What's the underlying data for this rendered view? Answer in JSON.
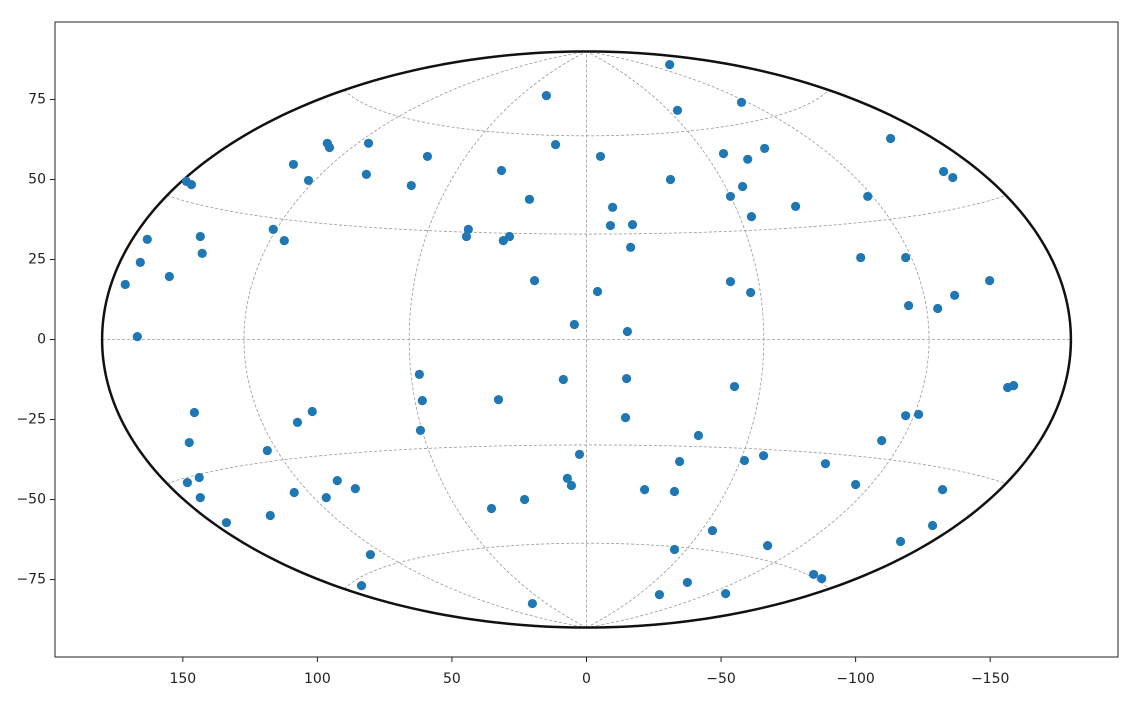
{
  "chart_data": {
    "type": "scatter",
    "projection": "hammer",
    "grid": true,
    "grid_spacing_deg": [
      60,
      30
    ],
    "xlim": [
      197.5,
      -197.5
    ],
    "ylim": [
      -99.2,
      99.2
    ],
    "xticks": [
      150,
      100,
      50,
      0,
      {
        "value": -50,
        "label": "−50"
      },
      {
        "value": -100,
        "label": "−100"
      },
      {
        "value": -150,
        "label": "−150"
      }
    ],
    "yticks": [
      {
        "value": -75,
        "label": "−75"
      },
      {
        "value": -50,
        "label": "−50"
      },
      {
        "value": -25,
        "label": "−25"
      },
      0,
      25,
      50,
      75
    ],
    "series": [
      {
        "color": "#1f77b4",
        "x": [
          -30.9,
          14.9,
          -33.8,
          -57.6,
          81.0,
          96.3,
          95.5,
          11.5,
          -5.2,
          59.1,
          108.9,
          81.8,
          103.3,
          148.7,
          146.8,
          65.1,
          31.6,
          21.2,
          -31.2,
          -50.9,
          -59.9,
          -66.2,
          -58.0,
          -53.5,
          -61.3,
          -77.7,
          -113,
          -104.5,
          -132.7,
          -136.1,
          -9.7,
          -8.9,
          -17.1,
          -16.4,
          43.9,
          44.6,
          28.6,
          30.9,
          116.4,
          112.3,
          143.5,
          163.2,
          142.8,
          165.8,
          155.0,
          171.4,
          166.9,
          19.3,
          -4.1,
          -53.5,
          -61,
          -101.9,
          -118.6,
          -119.7,
          -130.5,
          -136.8,
          -149.8,
          4.5,
          -15.2,
          62.1,
          8.6,
          -14.9,
          61.0,
          32.7,
          -55.0,
          -156.5,
          -158.7,
          145.7,
          101.9,
          107.4,
          -14.5,
          -118.6,
          -123.4,
          61.7,
          -41.6,
          147.6,
          -109.7,
          2.6,
          118.6,
          -65.8,
          -34.6,
          -58.7,
          -88.8,
          143.9,
          92.6,
          7.1,
          5.6,
          148.3,
          85.9,
          108.6,
          -21.6,
          -32.7,
          -100.0,
          -132.3,
          143.5,
          96.7,
          23.0,
          35.3,
          117.5,
          133.8,
          -46.8,
          -128.6,
          -116.7,
          -32.7,
          -67.3,
          80.3,
          -84.4,
          -87.4,
          -37.5,
          83.6,
          -27.1,
          -51.7,
          20.1
        ],
        "values": [
          85.9,
          76.2,
          71.6,
          74.1,
          61.3,
          61.3,
          60,
          60.9,
          57.2,
          57.2,
          54.7,
          51.6,
          49.7,
          49.4,
          48.4,
          48.1,
          52.8,
          43.8,
          50,
          58.1,
          56.3,
          59.7,
          47.8,
          44.7,
          38.4,
          41.6,
          62.8,
          44.7,
          52.5,
          50.6,
          41.3,
          35.6,
          35.9,
          28.8,
          34.4,
          32.2,
          32.2,
          30.9,
          34.4,
          30.9,
          32.2,
          31.3,
          26.9,
          24.1,
          19.7,
          17.2,
          0.9,
          18.4,
          15,
          18.1,
          14.7,
          25.6,
          25.6,
          10.6,
          9.7,
          13.8,
          18.4,
          4.7,
          2.5,
          -10.9,
          -12.5,
          -12.2,
          -19.1,
          -18.8,
          -14.7,
          -15,
          -14.4,
          -22.8,
          -22.5,
          -25.9,
          -24.4,
          -23.8,
          -23.4,
          -28.4,
          -30,
          -32.2,
          -31.6,
          -35.9,
          -34.7,
          -36.3,
          -38.1,
          -37.8,
          -38.8,
          -43.1,
          -44.1,
          -43.4,
          -45.6,
          -44.7,
          -46.6,
          -47.8,
          -46.9,
          -47.5,
          -45.3,
          -46.9,
          -49.4,
          -49.4,
          -50,
          -52.8,
          -55,
          -57.2,
          -59.7,
          -58.1,
          -63.1,
          -65.6,
          -64.4,
          -67.2,
          -73.4,
          -74.7,
          -75.9,
          -76.9,
          -79.7,
          -79.4,
          -82.5
        ]
      }
    ]
  }
}
